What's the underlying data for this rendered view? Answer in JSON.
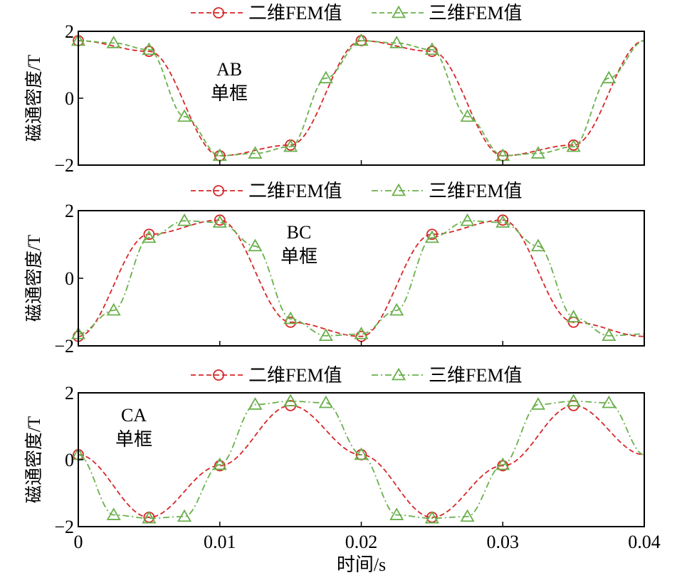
{
  "colors": {
    "fem2d": "#d62728",
    "fem3d": "#6ab04c"
  },
  "chart_data": [
    {
      "type": "line",
      "annotation": [
        "AB",
        "单框"
      ],
      "ylabel": "磁通密度/T",
      "xlabel": "",
      "xlim": [
        0,
        0.04
      ],
      "ylim": [
        -2,
        2
      ],
      "yticks": [
        "2",
        "0",
        "−2"
      ],
      "xticks": [],
      "legend_position": "top",
      "series": [
        {
          "name": "二维FEM值",
          "marker": "circle",
          "line": "dash",
          "x": [
            0,
            0.005,
            0.01,
            0.015,
            0.02,
            0.025,
            0.03,
            0.035
          ],
          "y": [
            1.72,
            1.4,
            -1.72,
            -1.4,
            1.72,
            1.4,
            -1.72,
            -1.4
          ]
        },
        {
          "name": "三维FEM值",
          "marker": "triangle",
          "line": "dash",
          "x": [
            0,
            0.0025,
            0.005,
            0.0075,
            0.01,
            0.0125,
            0.015,
            0.0175,
            0.02,
            0.0225,
            0.025,
            0.0275,
            0.03,
            0.0325,
            0.035,
            0.0375
          ],
          "y": [
            1.72,
            1.65,
            1.45,
            -0.55,
            -1.72,
            -1.65,
            -1.45,
            0.6,
            1.72,
            1.65,
            1.45,
            -0.55,
            -1.72,
            -1.65,
            -1.45,
            0.6
          ]
        }
      ]
    },
    {
      "type": "line",
      "annotation": [
        "BC",
        "单框"
      ],
      "ylabel": "磁通密度/T",
      "xlabel": "",
      "xlim": [
        0,
        0.04
      ],
      "ylim": [
        -2,
        2
      ],
      "yticks": [
        "2",
        "0",
        "−2"
      ],
      "xticks": [],
      "legend_position": "top",
      "series": [
        {
          "name": "二维FEM值",
          "marker": "circle",
          "line": "dash",
          "x": [
            0,
            0.005,
            0.01,
            0.015,
            0.02,
            0.025,
            0.03,
            0.035
          ],
          "y": [
            -1.72,
            1.3,
            1.72,
            -1.3,
            -1.72,
            1.3,
            1.72,
            -1.3
          ]
        },
        {
          "name": "三维FEM值",
          "marker": "triangle",
          "line": "dashdot",
          "x": [
            0,
            0.0025,
            0.005,
            0.0075,
            0.01,
            0.0125,
            0.015,
            0.0175,
            0.02,
            0.0225,
            0.025,
            0.0275,
            0.03,
            0.0325,
            0.035,
            0.0375
          ],
          "y": [
            -1.65,
            -0.95,
            1.2,
            1.7,
            1.65,
            0.95,
            -1.2,
            -1.7,
            -1.65,
            -0.95,
            1.2,
            1.7,
            1.65,
            0.95,
            -1.15,
            -1.7
          ]
        }
      ]
    },
    {
      "type": "line",
      "annotation": [
        "CA",
        "单框"
      ],
      "ylabel": "磁通密度/T",
      "xlabel": "时间/s",
      "xlim": [
        0,
        0.04
      ],
      "ylim": [
        -2,
        2
      ],
      "yticks": [
        "2",
        "0",
        "−2"
      ],
      "xticks": [
        "0",
        "0.01",
        "0.02",
        "0.03",
        "0.04"
      ],
      "legend_position": "top",
      "series": [
        {
          "name": "二维FEM值",
          "marker": "circle",
          "line": "dash",
          "x": [
            0,
            0.005,
            0.01,
            0.015,
            0.02,
            0.025,
            0.03,
            0.035
          ],
          "y": [
            0.15,
            -1.72,
            -0.18,
            1.62,
            0.15,
            -1.72,
            -0.18,
            1.62
          ]
        },
        {
          "name": "三维FEM值",
          "marker": "triangle",
          "line": "dashdot",
          "x": [
            0,
            0.0025,
            0.005,
            0.0075,
            0.01,
            0.0125,
            0.015,
            0.0175,
            0.02,
            0.0225,
            0.025,
            0.0275,
            0.03,
            0.0325,
            0.035,
            0.0375
          ],
          "y": [
            0.15,
            -1.65,
            -1.75,
            -1.7,
            -0.15,
            1.65,
            1.75,
            1.7,
            0.15,
            -1.65,
            -1.75,
            -1.7,
            -0.15,
            1.65,
            1.75,
            1.7
          ]
        }
      ]
    }
  ]
}
